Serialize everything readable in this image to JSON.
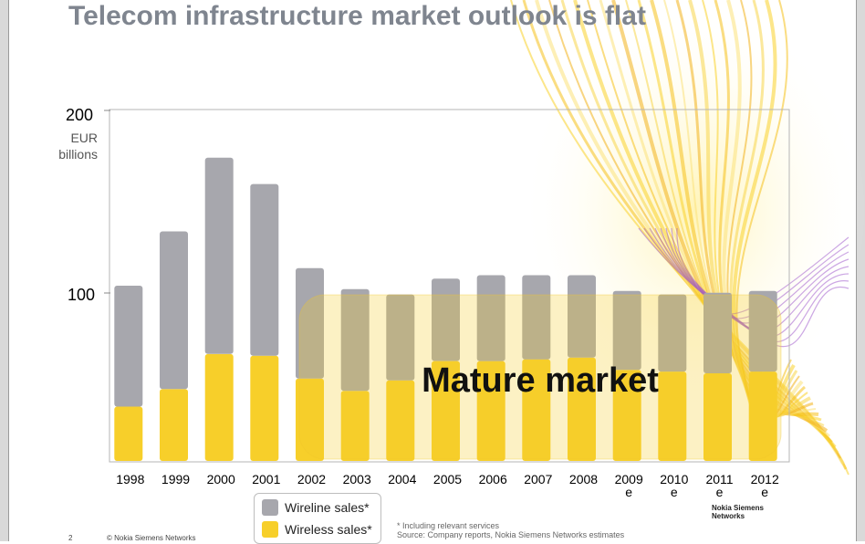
{
  "slide": {
    "title": "Telecom infrastructure market outlook is flat",
    "page_number": "2",
    "copyright": "© Nokia Siemens Networks",
    "footnote_line1": "* Including relevant services",
    "footnote_line2": "Source: Company reports, Nokia Siemens Networks estimates",
    "logo_line1": "Nokia Siemens",
    "logo_line2": "Networks"
  },
  "chart_data": {
    "type": "bar",
    "stacked": true,
    "title": "Telecom infrastructure market outlook is flat",
    "ylabel": "EUR billions",
    "ylabel_line1": "EUR",
    "ylabel_line2": "billions",
    "ylim": [
      0,
      200
    ],
    "yticks": [
      "100",
      "200"
    ],
    "categories": [
      "1998",
      "1999",
      "2000",
      "2001",
      "2002",
      "2003",
      "2004",
      "2005",
      "2006",
      "2007",
      "2008",
      "2009e",
      "2010e",
      "2011e",
      "2012e"
    ],
    "category_labels": [
      [
        "1998"
      ],
      [
        "1999"
      ],
      [
        "2000"
      ],
      [
        "2001"
      ],
      [
        "2002"
      ],
      [
        "2003"
      ],
      [
        "2004"
      ],
      [
        "2005"
      ],
      [
        "2006"
      ],
      [
        "2007"
      ],
      [
        "2008"
      ],
      [
        "2009",
        "e"
      ],
      [
        "2010",
        "e"
      ],
      [
        "2011",
        "e"
      ],
      [
        "2012",
        "e"
      ]
    ],
    "series": [
      {
        "name": "Wireless sales*",
        "color": "#f7cf2a",
        "values": [
          31,
          41,
          61,
          60,
          47,
          40,
          46,
          57,
          57,
          58,
          59,
          52,
          51,
          50,
          51
        ]
      },
      {
        "name": "Wireline sales*",
        "color": "#a7a7ad",
        "values": [
          69,
          90,
          112,
          98,
          63,
          58,
          49,
          47,
          49,
          48,
          47,
          45,
          44,
          46,
          46
        ]
      }
    ],
    "annotation": "Mature market",
    "grid": false,
    "legend_position": "bottom-left"
  }
}
